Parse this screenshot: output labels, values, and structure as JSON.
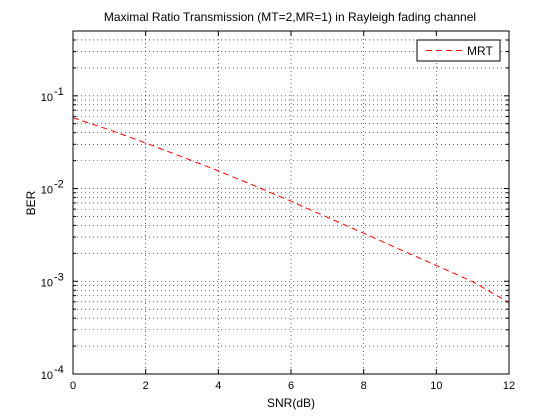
{
  "chart_data": {
    "type": "line",
    "title": "Maximal Ratio Transmission (MT=2,MR=1) in Rayleigh fading channel",
    "xlabel": "SNR(dB)",
    "ylabel": "BER",
    "xlim": [
      0,
      12
    ],
    "ylim": [
      0.0001,
      0.5
    ],
    "yscale": "log",
    "grid": true,
    "legend_position": "top-right",
    "x_ticks": [
      "0",
      "2",
      "4",
      "6",
      "8",
      "10",
      "12"
    ],
    "y_ticks": [
      {
        "base": "10",
        "exp": "-4"
      },
      {
        "base": "10",
        "exp": "-3"
      },
      {
        "base": "10",
        "exp": "-2"
      },
      {
        "base": "10",
        "exp": "-1"
      }
    ],
    "series": [
      {
        "name": "MRT",
        "color": "#ff0000",
        "line_style": "dashed",
        "x": [
          0,
          1,
          2,
          3,
          4,
          5,
          6,
          7,
          8,
          9,
          10,
          11,
          12
        ],
        "y": [
          0.058,
          0.043,
          0.031,
          0.022,
          0.0155,
          0.0107,
          0.0073,
          0.0049,
          0.0033,
          0.0022,
          0.00148,
          0.00099,
          0.00059
        ]
      }
    ]
  }
}
